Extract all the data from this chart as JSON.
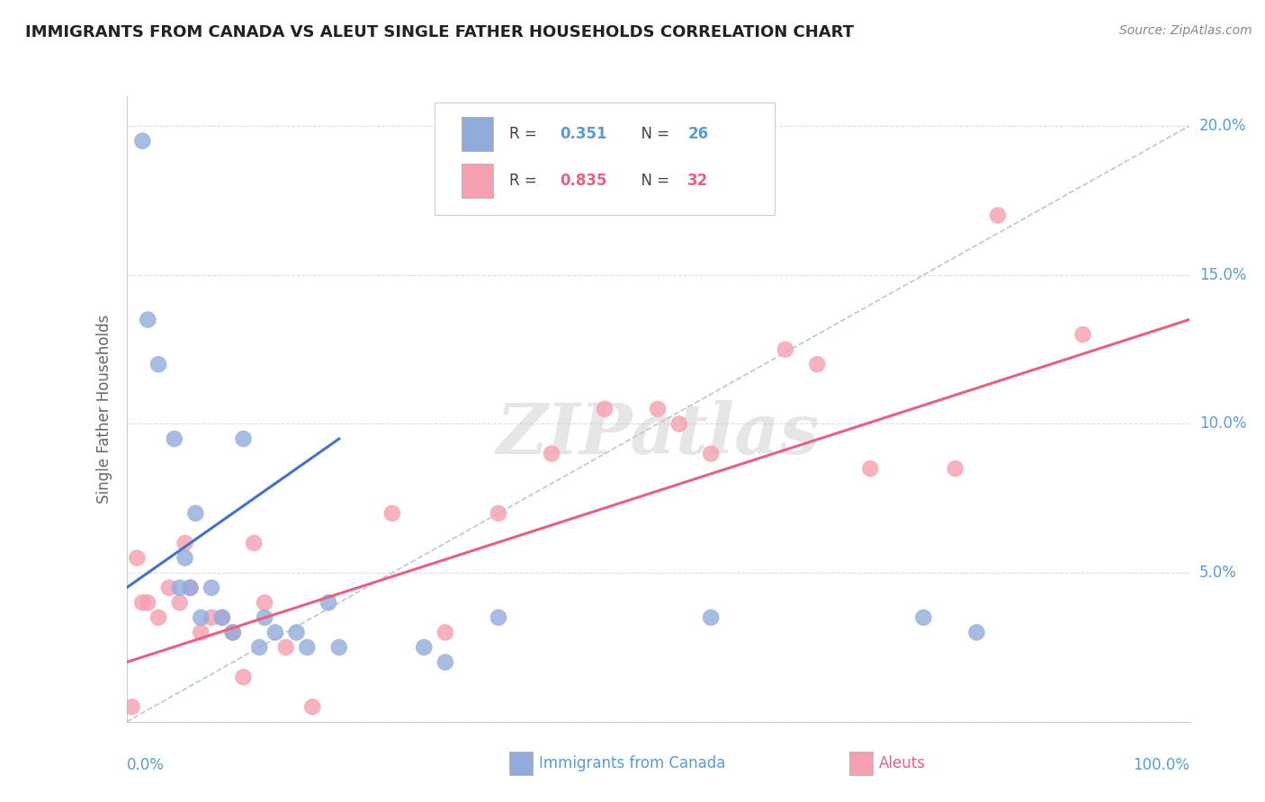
{
  "title": "IMMIGRANTS FROM CANADA VS ALEUT SINGLE FATHER HOUSEHOLDS CORRELATION CHART",
  "source_text": "Source: ZipAtlas.com",
  "ylabel": "Single Father Households",
  "xlim": [
    0,
    100
  ],
  "ylim": [
    0,
    21
  ],
  "yticks": [
    0,
    5,
    10,
    15,
    20
  ],
  "legend_r1": "R = 0.351",
  "legend_n1": "N = 26",
  "legend_r2": "R = 0.835",
  "legend_n2": "N = 32",
  "color_blue": "#92ABDB",
  "color_pink": "#F4A0B0",
  "color_blue_line": "#4472C4",
  "color_pink_line": "#E86080",
  "color_diag_line": "#A8B8D8",
  "blue_scatter_x": [
    1.5,
    2.0,
    3.0,
    4.5,
    5.0,
    5.5,
    6.0,
    6.5,
    7.0,
    8.0,
    9.0,
    10.0,
    11.0,
    12.5,
    13.0,
    14.0,
    16.0,
    17.0,
    19.0,
    20.0,
    28.0,
    30.0,
    35.0,
    55.0,
    75.0,
    80.0
  ],
  "blue_scatter_y": [
    19.5,
    13.5,
    12.0,
    9.5,
    4.5,
    5.5,
    4.5,
    7.0,
    3.5,
    4.5,
    3.5,
    3.0,
    9.5,
    2.5,
    3.5,
    3.0,
    3.0,
    2.5,
    4.0,
    2.5,
    2.5,
    2.0,
    3.5,
    3.5,
    3.5,
    3.0
  ],
  "pink_scatter_x": [
    0.5,
    1.0,
    1.5,
    2.0,
    3.0,
    4.0,
    5.0,
    5.5,
    6.0,
    7.0,
    8.0,
    9.0,
    10.0,
    11.0,
    12.0,
    13.0,
    15.0,
    17.5,
    25.0,
    30.0,
    35.0,
    40.0,
    45.0,
    50.0,
    52.0,
    55.0,
    62.0,
    65.0,
    70.0,
    78.0,
    82.0,
    90.0
  ],
  "pink_scatter_y": [
    0.5,
    5.5,
    4.0,
    4.0,
    3.5,
    4.5,
    4.0,
    6.0,
    4.5,
    3.0,
    3.5,
    3.5,
    3.0,
    1.5,
    6.0,
    4.0,
    2.5,
    0.5,
    7.0,
    3.0,
    7.0,
    9.0,
    10.5,
    10.5,
    10.0,
    9.0,
    12.5,
    12.0,
    8.5,
    8.5,
    17.0,
    13.0
  ],
  "blue_line_x": [
    0,
    20
  ],
  "blue_line_y": [
    4.5,
    9.5
  ],
  "pink_line_x": [
    0,
    100
  ],
  "pink_line_y": [
    2.0,
    13.5
  ],
  "diag_line_x": [
    0,
    100
  ],
  "diag_line_y": [
    0,
    20
  ],
  "grid_color": "#DDDDDD",
  "background_color": "#FFFFFF",
  "title_color": "#222222",
  "title_fontsize": 13,
  "axis_label_color": "#666666",
  "source_color": "#888888",
  "right_tick_color": "#5B9BD5",
  "bottom_label_color_blue": "#5B9BD5",
  "bottom_label_color_pink": "#E86080"
}
